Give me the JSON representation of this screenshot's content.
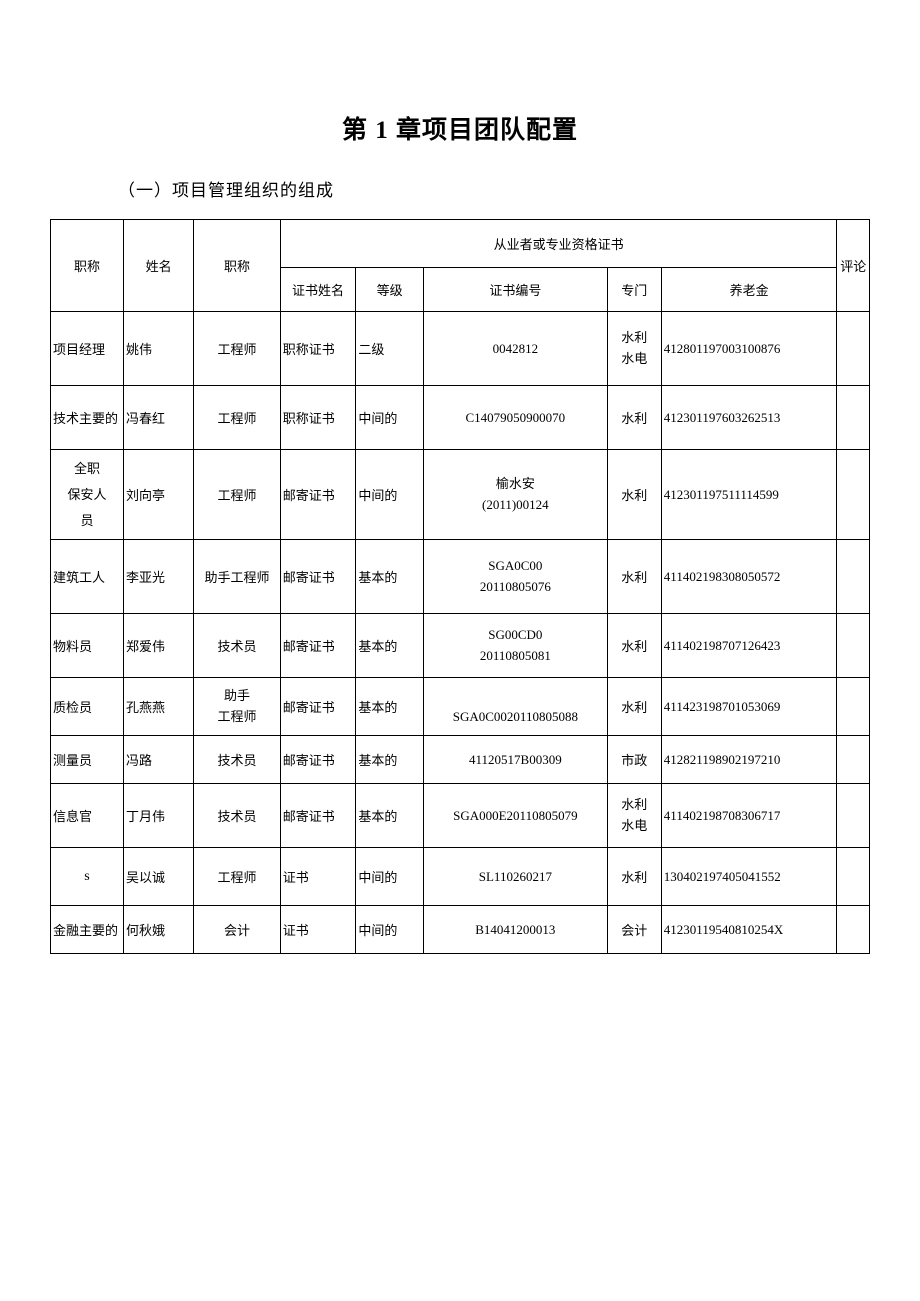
{
  "chapter_title": "第 1 章项目团队配置",
  "section_title": "（一）项目管理组织的组成",
  "headers": {
    "position": "职称",
    "name": "姓名",
    "title": "职称",
    "cert_group": "从业者或专业资格证书",
    "cert_name": "证书姓名",
    "grade": "等级",
    "cert_no": "证书编号",
    "dept": "专门",
    "pension": "养老金",
    "comment": "评论"
  },
  "rows": [
    {
      "position": "项目经理",
      "name": "姚伟",
      "title": "工程师",
      "cert_name": "职称证书",
      "grade": "二级",
      "cert_no": "0042812",
      "dept": "水利\n水电",
      "pension": "412801197003100876",
      "comment": "",
      "height_class": "row-tall"
    },
    {
      "position": "技术主要的",
      "name": "冯春红",
      "title": "工程师",
      "cert_name": "职称证书",
      "grade": "中间的",
      "cert_no": "C14079050900070",
      "dept": "水利",
      "pension": "412301197603262513",
      "comment": "",
      "height_class": "row-med"
    },
    {
      "position": "全职\n保安人\n员",
      "name": "刘向亭",
      "title": "工程师",
      "cert_name": "邮寄证书",
      "grade": "中间的",
      "cert_no": "榆水安\n(2011)00124",
      "dept": "水利",
      "pension": "412301197511114599",
      "comment": "",
      "height_class": "row-taller"
    },
    {
      "position": "建筑工人",
      "name": "李亚光",
      "title": "助手工程师",
      "cert_name": "邮寄证书",
      "grade": "基本的",
      "cert_no": "SGA0C00\n20110805076",
      "dept": "水利",
      "pension": "411402198308050572",
      "comment": "",
      "height_class": "row-tall"
    },
    {
      "position": "物料员",
      "name": "郑爱伟",
      "title": "技术员",
      "cert_name": "邮寄证书",
      "grade": "基本的",
      "cert_no": "SG00CD0\n20110805081",
      "dept": "水利",
      "pension": "411402198707126423",
      "comment": "",
      "height_class": "row-med"
    },
    {
      "position": "质检员",
      "name": "孔燕燕",
      "title": "助手\n工程师",
      "cert_name": "邮寄证书",
      "grade": "基本的",
      "cert_no": "\nSGA0C0020110805088",
      "dept": "水利",
      "pension": "411423198701053069",
      "comment": "",
      "height_class": "row-xmed"
    },
    {
      "position": "测量员",
      "name": "冯路",
      "title": "技术员",
      "cert_name": "邮寄证书",
      "grade": "基本的",
      "cert_no": "41120517B00309",
      "dept": "市政",
      "pension": "412821198902197210",
      "comment": "",
      "height_class": "row-short"
    },
    {
      "position": "信息官",
      "name": "丁月伟",
      "title": "技术员",
      "cert_name": "邮寄证书",
      "grade": "基本的",
      "cert_no": "SGA000E20110805079",
      "dept": "水利\n水电",
      "pension": "411402198708306717",
      "comment": "",
      "height_class": "row-med"
    },
    {
      "position": "s",
      "name": "吴以诚",
      "title": "工程师",
      "cert_name": "证书",
      "grade": "中间的",
      "cert_no": "SL110260217",
      "dept": "水利",
      "pension": "130402197405041552",
      "comment": "",
      "height_class": "row-xmed"
    },
    {
      "position": "金融主要的",
      "name": "何秋娥",
      "title": "会计",
      "cert_name": "证书",
      "grade": "中间的",
      "cert_no": "B14041200013",
      "dept": "会计",
      "pension": "41230119540810254X",
      "comment": "",
      "height_class": "row-short"
    }
  ]
}
